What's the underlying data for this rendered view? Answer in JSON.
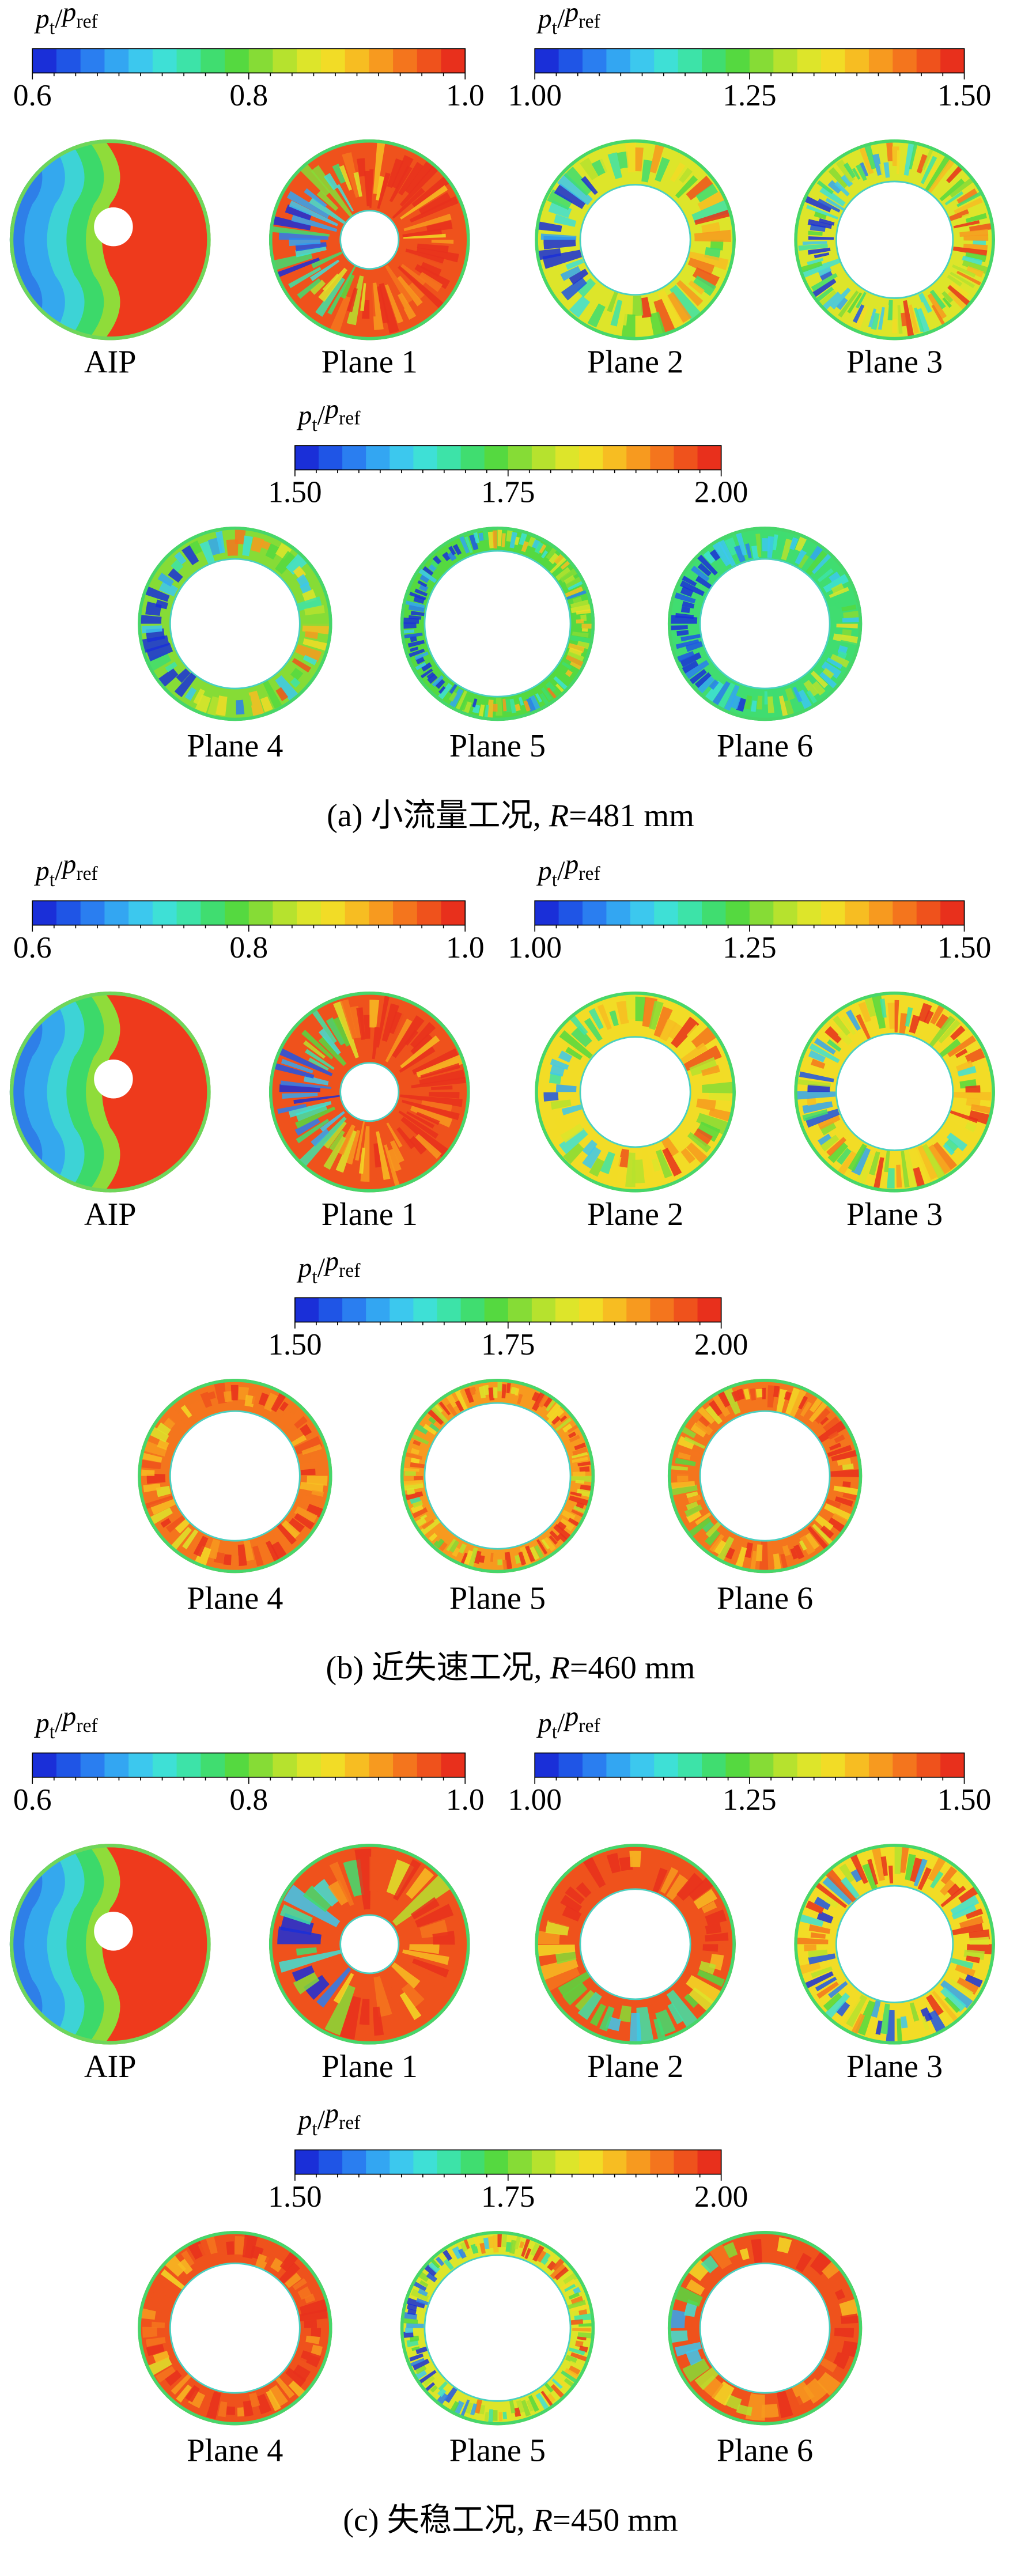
{
  "panels": [
    {
      "colorbars": [
        {
          "label": [
            "p",
            "t",
            "/",
            "p",
            "ref"
          ],
          "ticks": [
            "0.6",
            "0.8",
            "1.0"
          ]
        },
        {
          "label": [
            "p",
            "t",
            "/",
            "p",
            "ref"
          ],
          "ticks": [
            "1.00",
            "1.25",
            "1.50"
          ]
        },
        {
          "label": [
            "p",
            "t",
            "/",
            "p",
            "ref"
          ],
          "ticks": [
            "1.50",
            "1.75",
            "2.00"
          ]
        }
      ],
      "plots": [
        "AIP",
        "Plane 1",
        "Plane 2",
        "Plane 3",
        "Plane 4",
        "Plane 5",
        "Plane 6"
      ],
      "caption": [
        "(a) 小流量工况, ",
        "R",
        "=481 mm"
      ]
    },
    {
      "colorbars": [
        {
          "label": [
            "p",
            "t",
            "/",
            "p",
            "ref"
          ],
          "ticks": [
            "0.6",
            "0.8",
            "1.0"
          ]
        },
        {
          "label": [
            "p",
            "t",
            "/",
            "p",
            "ref"
          ],
          "ticks": [
            "1.00",
            "1.25",
            "1.50"
          ]
        },
        {
          "label": [
            "p",
            "t",
            "/",
            "p",
            "ref"
          ],
          "ticks": [
            "1.50",
            "1.75",
            "2.00"
          ]
        }
      ],
      "plots": [
        "AIP",
        "Plane 1",
        "Plane 2",
        "Plane 3",
        "Plane 4",
        "Plane 5",
        "Plane 6"
      ],
      "caption": [
        "(b) 近失速工况, ",
        "R",
        "=460 mm"
      ]
    },
    {
      "colorbars": [
        {
          "label": [
            "p",
            "t",
            "/",
            "p",
            "ref"
          ],
          "ticks": [
            "0.6",
            "0.8",
            "1.0"
          ]
        },
        {
          "label": [
            "p",
            "t",
            "/",
            "p",
            "ref"
          ],
          "ticks": [
            "1.00",
            "1.25",
            "1.50"
          ]
        },
        {
          "label": [
            "p",
            "t",
            "/",
            "p",
            "ref"
          ],
          "ticks": [
            "1.50",
            "1.75",
            "2.00"
          ]
        }
      ],
      "plots": [
        "AIP",
        "Plane 1",
        "Plane 2",
        "Plane 3",
        "Plane 4",
        "Plane 5",
        "Plane 6"
      ],
      "caption": [
        "(c) 失稳工况, ",
        "R",
        "=450 mm"
      ]
    }
  ]
}
